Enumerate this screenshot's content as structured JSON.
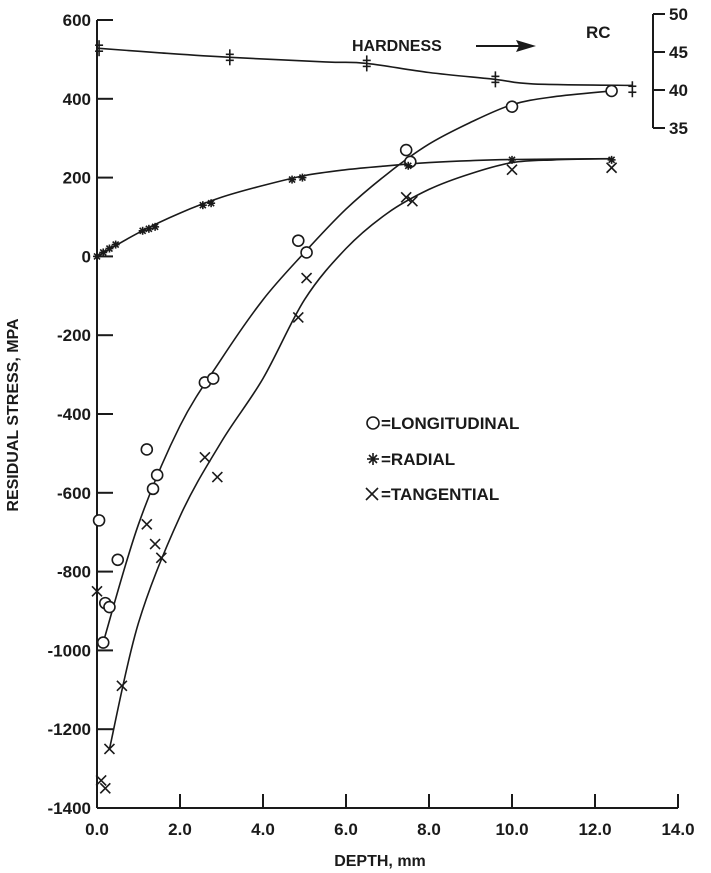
{
  "chart_data": {
    "type": "scatter",
    "title": "",
    "xlabel": "DEPTH, mm",
    "ylabel": "RESIDUAL STRESS, MPA",
    "xlim": [
      0,
      14
    ],
    "ylim": [
      -1400,
      600
    ],
    "x_ticks": [
      "0.0",
      "2.0",
      "4.0",
      "6.0",
      "8.0",
      "10.0",
      "12.0",
      "14.0"
    ],
    "x_tick_values": [
      0,
      2,
      4,
      6,
      8,
      10,
      12,
      14
    ],
    "y_ticks": [
      "600",
      "400",
      "200",
      "0",
      "-200",
      "-400",
      "-600",
      "-800",
      "-1000",
      "-1200",
      "-1400"
    ],
    "y_tick_values": [
      600,
      400,
      200,
      0,
      -200,
      -400,
      -600,
      -800,
      -1000,
      -1200,
      -1400
    ],
    "grid": false,
    "secondary_axis": {
      "label": "RC",
      "ticks": [
        "50",
        "45",
        "40",
        "35"
      ],
      "tick_values": [
        50,
        45,
        40,
        35
      ],
      "ylim": [
        35,
        50
      ]
    },
    "annotation": "HARDNESS",
    "legend": {
      "position": "center-right",
      "entries": [
        {
          "symbol": "circle",
          "label": "=LONGITUDINAL"
        },
        {
          "symbol": "star",
          "label": "=RADIAL"
        },
        {
          "symbol": "x",
          "label": "=TANGENTIAL"
        }
      ]
    },
    "series": [
      {
        "marker": "circle",
        "points": [
          [
            0.05,
            -670
          ],
          [
            0.15,
            -980
          ],
          [
            0.2,
            -880
          ],
          [
            0.3,
            -890
          ],
          [
            0.5,
            -770
          ],
          [
            1.2,
            -490
          ],
          [
            1.35,
            -590
          ],
          [
            1.45,
            -555
          ],
          [
            2.6,
            -320
          ],
          [
            2.8,
            -310
          ],
          [
            4.85,
            40
          ],
          [
            5.05,
            10
          ],
          [
            7.45,
            270
          ],
          [
            7.55,
            240
          ],
          [
            10.0,
            380
          ],
          [
            12.4,
            420
          ]
        ],
        "curve": [
          [
            0.15,
            -980
          ],
          [
            1.0,
            -680
          ],
          [
            2.0,
            -430
          ],
          [
            3.0,
            -260
          ],
          [
            4.0,
            -110
          ],
          [
            5.0,
            10
          ],
          [
            6.0,
            120
          ],
          [
            7.0,
            210
          ],
          [
            8.0,
            285
          ],
          [
            9.0,
            340
          ],
          [
            10.0,
            385
          ],
          [
            11.0,
            405
          ],
          [
            12.4,
            420
          ]
        ]
      },
      {
        "marker": "star",
        "points": [
          [
            0.0,
            0
          ],
          [
            0.15,
            10
          ],
          [
            0.3,
            20
          ],
          [
            0.45,
            30
          ],
          [
            1.1,
            65
          ],
          [
            1.25,
            70
          ],
          [
            1.4,
            75
          ],
          [
            2.55,
            130
          ],
          [
            2.75,
            135
          ],
          [
            4.7,
            195
          ],
          [
            4.95,
            200
          ],
          [
            7.5,
            230
          ],
          [
            10.0,
            245
          ],
          [
            12.4,
            245
          ]
        ],
        "curve": [
          [
            0.0,
            0
          ],
          [
            1.0,
            60
          ],
          [
            2.0,
            110
          ],
          [
            3.0,
            150
          ],
          [
            4.0,
            180
          ],
          [
            5.0,
            205
          ],
          [
            6.0,
            220
          ],
          [
            7.0,
            230
          ],
          [
            8.0,
            238
          ],
          [
            9.0,
            243
          ],
          [
            10.0,
            246
          ],
          [
            12.4,
            248
          ]
        ]
      },
      {
        "marker": "x",
        "points": [
          [
            0.0,
            -850
          ],
          [
            0.1,
            -1330
          ],
          [
            0.2,
            -1350
          ],
          [
            0.3,
            -1250
          ],
          [
            0.6,
            -1090
          ],
          [
            1.2,
            -680
          ],
          [
            1.4,
            -730
          ],
          [
            1.55,
            -765
          ],
          [
            2.6,
            -510
          ],
          [
            2.9,
            -560
          ],
          [
            4.85,
            -155
          ],
          [
            5.05,
            -55
          ],
          [
            7.45,
            150
          ],
          [
            7.6,
            140
          ],
          [
            10.0,
            220
          ],
          [
            12.4,
            225
          ]
        ],
        "curve": [
          [
            0.3,
            -1250
          ],
          [
            1.0,
            -930
          ],
          [
            2.0,
            -660
          ],
          [
            3.0,
            -470
          ],
          [
            4.0,
            -310
          ],
          [
            5.0,
            -110
          ],
          [
            6.0,
            20
          ],
          [
            7.0,
            110
          ],
          [
            8.0,
            170
          ],
          [
            9.0,
            210
          ],
          [
            10.0,
            238
          ],
          [
            11.0,
            245
          ],
          [
            12.4,
            248
          ]
        ]
      },
      {
        "name": "HARDNESS",
        "marker": "hardness",
        "axis": "secondary",
        "points": [
          [
            0.05,
            45.5
          ],
          [
            3.2,
            44.3
          ],
          [
            6.5,
            43.5
          ],
          [
            9.6,
            41.4
          ],
          [
            12.9,
            40.1
          ]
        ],
        "curve": [
          [
            0.0,
            45.5
          ],
          [
            1.5,
            44.9
          ],
          [
            3.2,
            44.3
          ],
          [
            5.5,
            43.7
          ],
          [
            6.5,
            43.5
          ],
          [
            8.0,
            42.3
          ],
          [
            9.6,
            41.4
          ],
          [
            10.5,
            40.8
          ],
          [
            12.9,
            40.6
          ]
        ]
      }
    ]
  }
}
